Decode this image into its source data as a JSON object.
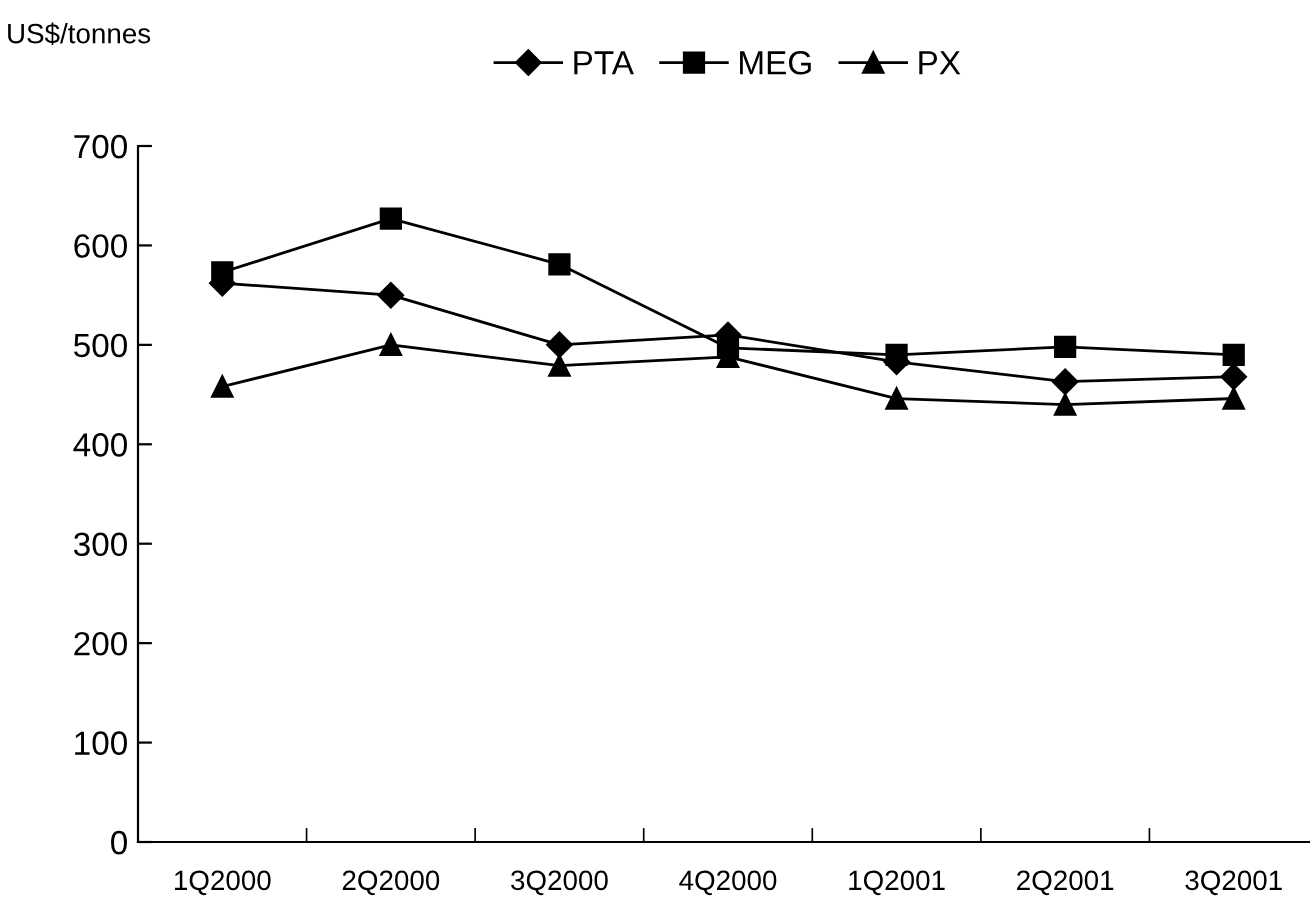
{
  "chart_data": {
    "type": "line",
    "ylabel": "US$/tonnes",
    "categories": [
      "1Q2000",
      "2Q2000",
      "3Q2000",
      "4Q2000",
      "1Q2001",
      "2Q2001",
      "3Q2001"
    ],
    "series": [
      {
        "name": "PTA",
        "color": "#000000",
        "marker": "diamond",
        "values": [
          562,
          550,
          500,
          510,
          483,
          463,
          468
        ]
      },
      {
        "name": "MEG",
        "color": "#000000",
        "marker": "square",
        "values": [
          573,
          627,
          581,
          497,
          490,
          498,
          490
        ]
      },
      {
        "name": "PX",
        "color": "#000000",
        "marker": "triangle",
        "values": [
          458,
          500,
          479,
          488,
          446,
          440,
          446
        ]
      }
    ],
    "ylim": [
      0,
      700
    ],
    "yticks": [
      0,
      100,
      200,
      300,
      400,
      500,
      600,
      700
    ],
    "grid": false,
    "legend": "top",
    "line_style": "solid"
  }
}
